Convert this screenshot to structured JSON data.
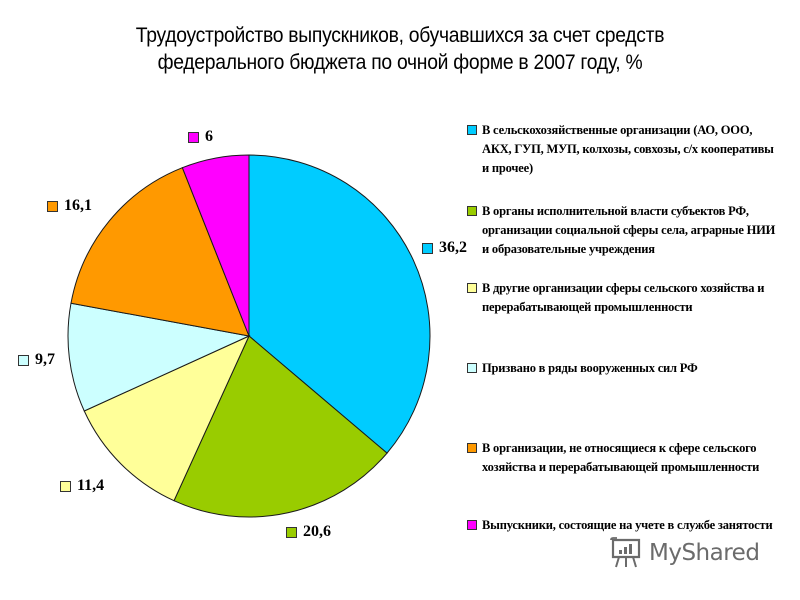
{
  "title": {
    "line1": "Трудоустройство выпускников, обучавшихся за счет средств",
    "line2": "федерального бюджета по очной форме в 2007 году, %"
  },
  "legend": {
    "items": [
      {
        "label": "В сельскохозяйственные организации (АО, ООО, АКХ, ГУП, МУП, колхозы, совхозы, с/х кооперативы и прочее)",
        "color": "#00CCFF"
      },
      {
        "label": "В органы исполнительной власти субъектов РФ, организации социальной сферы села, аграрные НИИ и образовательные учреждения",
        "color": "#99CC00"
      },
      {
        "label": "В другие организации сферы сельского хозяйства и перерабатывающей промышленности",
        "color": "#FFFF99"
      },
      {
        "label": "Призвано в ряды вооруженных сил РФ",
        "color": "#CCFFFF"
      },
      {
        "label": "В организации, не относящиеся к сфере сельского хозяйства и перерабатывающей промышленности",
        "color": "#FF9900"
      },
      {
        "label": "Выпускники, состоящие на учете в службе занятости",
        "color": "#FF00FF"
      }
    ]
  },
  "data_labels": [
    "36,2",
    "20,6",
    "11,4",
    "9,7",
    "16,1",
    "6"
  ],
  "watermark": {
    "text": "MyShared"
  },
  "chart_data": {
    "type": "pie",
    "title": "Трудоустройство выпускников, обучавшихся за счет средств федерального бюджета по очной форме в 2007 году, %",
    "categories": [
      "В сельскохозяйственные организации (АО, ООО, АКХ, ГУП, МУП, колхозы, совхозы, с/х кооперативы и прочее)",
      "В органы исполнительной власти субъектов РФ, организации социальной сферы села, аграрные НИИ и образовательные учреждения",
      "В другие организации сферы сельского хозяйства и перерабатывающей промышленности",
      "Призвано в ряды вооруженных сил РФ",
      "В организации, не относящиеся к сфере сельского хозяйства и перерабатывающей промышленности",
      "Выпускники, состоящие на учете в службе занятости"
    ],
    "values": [
      36.2,
      20.6,
      11.4,
      9.7,
      16.1,
      6
    ],
    "colors": [
      "#00CCFF",
      "#99CC00",
      "#FFFF99",
      "#CCFFFF",
      "#FF9900",
      "#FF00FF"
    ],
    "start_angle": "top (12 o'clock)",
    "direction": "clockwise",
    "legend_position": "right",
    "data_labels": "values with colored legend keys, outside slices"
  }
}
